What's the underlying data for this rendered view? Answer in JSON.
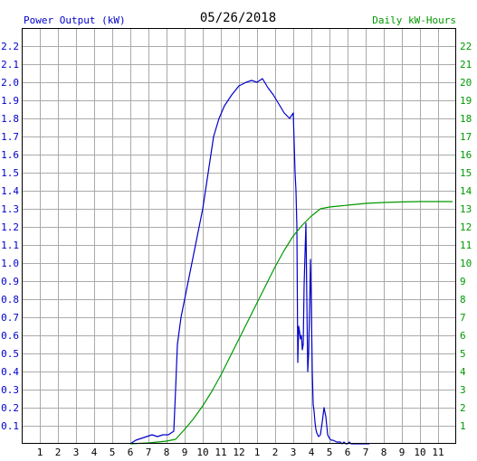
{
  "chart_data": {
    "type": "line",
    "title": "05/26/2018",
    "ylabel_left": "Power Output (kW)",
    "ylabel_right": "Daily kW-Hours",
    "x_tick_labels": [
      "1",
      "2",
      "3",
      "4",
      "5",
      "6",
      "7",
      "8",
      "9",
      "10",
      "11",
      "12",
      "1",
      "2",
      "3",
      "4",
      "5",
      "6",
      "7",
      "8",
      "9",
      "10",
      "11"
    ],
    "y_left_tick_labels": [
      "0.1",
      "0.2",
      "0.3",
      "0.4",
      "0.5",
      "0.6",
      "0.7",
      "0.8",
      "0.9",
      "1.0",
      "1.1",
      "1.2",
      "1.3",
      "1.4",
      "1.5",
      "1.6",
      "1.7",
      "1.8",
      "1.9",
      "2.0",
      "2.1",
      "2.2"
    ],
    "y_right_tick_labels": [
      "1",
      "2",
      "3",
      "4",
      "5",
      "6",
      "7",
      "8",
      "9",
      "10",
      "11",
      "12",
      "13",
      "14",
      "15",
      "16",
      "17",
      "18",
      "19",
      "20",
      "21",
      "22"
    ],
    "xlim": [
      0,
      24
    ],
    "ylim_left": [
      0,
      2.3
    ],
    "ylim_right": [
      0,
      23
    ],
    "grid": true,
    "colors": {
      "power": "#0000cc",
      "energy": "#009900",
      "grid": "#aaaaaa",
      "title": "#000000"
    },
    "series": [
      {
        "name": "Power Output (kW)",
        "axis": "left",
        "x": [
          6.0,
          6.3,
          6.6,
          6.9,
          7.2,
          7.5,
          7.8,
          8.1,
          8.4,
          8.5,
          8.6,
          8.8,
          9.0,
          9.3,
          9.6,
          10.0,
          10.3,
          10.6,
          10.9,
          11.2,
          11.6,
          12.0,
          12.4,
          12.7,
          13.0,
          13.3,
          13.6,
          13.9,
          14.2,
          14.5,
          14.8,
          15.0,
          15.1,
          15.15,
          15.2,
          15.25,
          15.3,
          15.35,
          15.4,
          15.45,
          15.5,
          15.55,
          15.6,
          15.7,
          15.75,
          15.8,
          15.85,
          15.9,
          15.95,
          16.0,
          16.05,
          16.1,
          16.15,
          16.2,
          16.25,
          16.3,
          16.35,
          16.4,
          16.5,
          16.6,
          16.7,
          16.8,
          16.9,
          17.0,
          17.1,
          17.2,
          17.4,
          17.6,
          17.7,
          17.8,
          17.9,
          18.0,
          18.1,
          18.2,
          18.4,
          18.6,
          18.8,
          19.0,
          19.2
        ],
        "y": [
          0.0,
          0.02,
          0.03,
          0.04,
          0.05,
          0.04,
          0.05,
          0.05,
          0.07,
          0.3,
          0.55,
          0.7,
          0.8,
          0.95,
          1.1,
          1.3,
          1.5,
          1.7,
          1.8,
          1.87,
          1.93,
          1.98,
          2.0,
          2.01,
          2.0,
          2.02,
          1.97,
          1.93,
          1.88,
          1.83,
          1.8,
          1.83,
          1.5,
          1.4,
          1.2,
          0.45,
          0.65,
          0.62,
          0.58,
          0.6,
          0.52,
          0.55,
          0.88,
          1.22,
          0.8,
          0.4,
          0.5,
          0.75,
          1.02,
          0.75,
          0.4,
          0.22,
          0.18,
          0.12,
          0.08,
          0.06,
          0.05,
          0.04,
          0.05,
          0.12,
          0.2,
          0.15,
          0.05,
          0.03,
          0.02,
          0.02,
          0.01,
          0.01,
          0.0,
          0.01,
          0.0,
          0.0,
          0.01,
          0.0,
          0.0,
          0.0,
          0.0,
          0.0,
          0.0
        ]
      },
      {
        "name": "Daily kW-Hours",
        "axis": "right",
        "x": [
          6.0,
          7.0,
          8.0,
          8.5,
          9.0,
          9.5,
          10.0,
          10.5,
          11.0,
          11.5,
          12.0,
          12.5,
          13.0,
          13.5,
          14.0,
          14.5,
          15.0,
          15.5,
          16.0,
          16.5,
          17.0,
          17.5,
          18.0,
          18.5,
          19.0,
          20.0,
          21.0,
          22.0,
          23.0,
          23.8
        ],
        "y": [
          0.0,
          0.05,
          0.15,
          0.25,
          0.8,
          1.4,
          2.1,
          2.9,
          3.8,
          4.8,
          5.8,
          6.8,
          7.8,
          8.8,
          9.8,
          10.7,
          11.5,
          12.1,
          12.6,
          13.0,
          13.1,
          13.15,
          13.2,
          13.25,
          13.3,
          13.35,
          13.38,
          13.4,
          13.4,
          13.4
        ]
      }
    ]
  }
}
